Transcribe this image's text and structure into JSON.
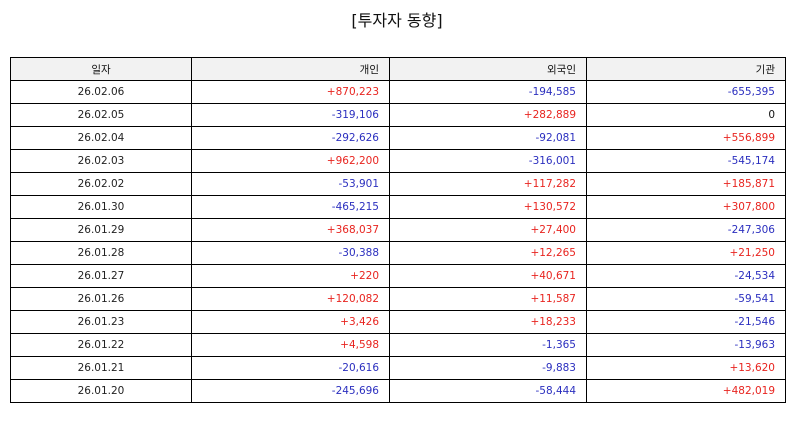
{
  "title": "[투자자 동향]",
  "table": {
    "headers": [
      "일자",
      "개인",
      "외국인",
      "기관"
    ],
    "rows": [
      [
        "26.02.06",
        "+870,223",
        "-194,585",
        "-655,395"
      ],
      [
        "26.02.05",
        "-319,106",
        "+282,889",
        "0"
      ],
      [
        "26.02.04",
        "-292,626",
        "-92,081",
        "+556,899"
      ],
      [
        "26.02.03",
        "+962,200",
        "-316,001",
        "-545,174"
      ],
      [
        "26.02.02",
        "-53,901",
        "+117,282",
        "+185,871"
      ],
      [
        "26.01.30",
        "-465,215",
        "+130,572",
        "+307,800"
      ],
      [
        "26.01.29",
        "+368,037",
        "+27,400",
        "-247,306"
      ],
      [
        "26.01.28",
        "-30,388",
        "+12,265",
        "+21,250"
      ],
      [
        "26.01.27",
        "+220",
        "+40,671",
        "-24,534"
      ],
      [
        "26.01.26",
        "+120,082",
        "+11,587",
        "-59,541"
      ],
      [
        "26.01.23",
        "+3,426",
        "+18,233",
        "-21,546"
      ],
      [
        "26.01.22",
        "+4,598",
        "-1,365",
        "-13,963"
      ],
      [
        "26.01.21",
        "-20,616",
        "-9,883",
        "+13,620"
      ],
      [
        "26.01.20",
        "-245,696",
        "-58,444",
        "+482,019"
      ]
    ]
  },
  "colors": {
    "positive": "#e8241f",
    "negative": "#2b2fbf",
    "header_bg": "#f2f2f2"
  }
}
